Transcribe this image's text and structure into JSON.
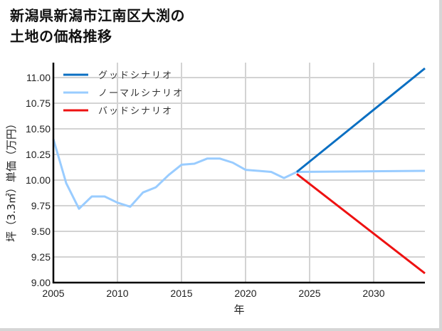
{
  "title_line1": "新潟県新潟市江南区大渕の",
  "title_line2": "土地の価格推移",
  "chart_data": {
    "type": "line",
    "title": "新潟県新潟市江南区大渕の土地の価格推移",
    "xlabel": "年",
    "ylabel": "坪（3.3㎡）単価（万円）",
    "xlim": [
      2005,
      2034
    ],
    "ylim": [
      9.0,
      11.1
    ],
    "x_ticks": [
      "2005",
      "2010",
      "2015",
      "2020",
      "2025",
      "2030"
    ],
    "y_ticks": [
      "9.00",
      "9.25",
      "9.50",
      "9.75",
      "10.00",
      "10.25",
      "10.50",
      "10.75",
      "11.00"
    ],
    "grid": true,
    "legend_position": "upper left",
    "series": [
      {
        "name": "グッドシナリオ",
        "color": "#0a6fc2",
        "x": [
          2024,
          2034
        ],
        "values": [
          10.08,
          11.09
        ]
      },
      {
        "name": "ノーマルシナリオ",
        "color": "#99ccff",
        "x": [
          2005,
          2006,
          2007,
          2008,
          2009,
          2010,
          2011,
          2012,
          2013,
          2014,
          2015,
          2016,
          2017,
          2018,
          2019,
          2020,
          2021,
          2022,
          2023,
          2024,
          2034
        ],
        "values": [
          10.4,
          9.97,
          9.72,
          9.84,
          9.84,
          9.78,
          9.74,
          9.88,
          9.93,
          10.05,
          10.15,
          10.16,
          10.21,
          10.21,
          10.17,
          10.1,
          10.09,
          10.08,
          10.02,
          10.08,
          10.09
        ]
      },
      {
        "name": "バッドシナリオ",
        "color": "#ee1111",
        "x": [
          2024,
          2034
        ],
        "values": [
          10.06,
          9.09
        ]
      }
    ]
  }
}
